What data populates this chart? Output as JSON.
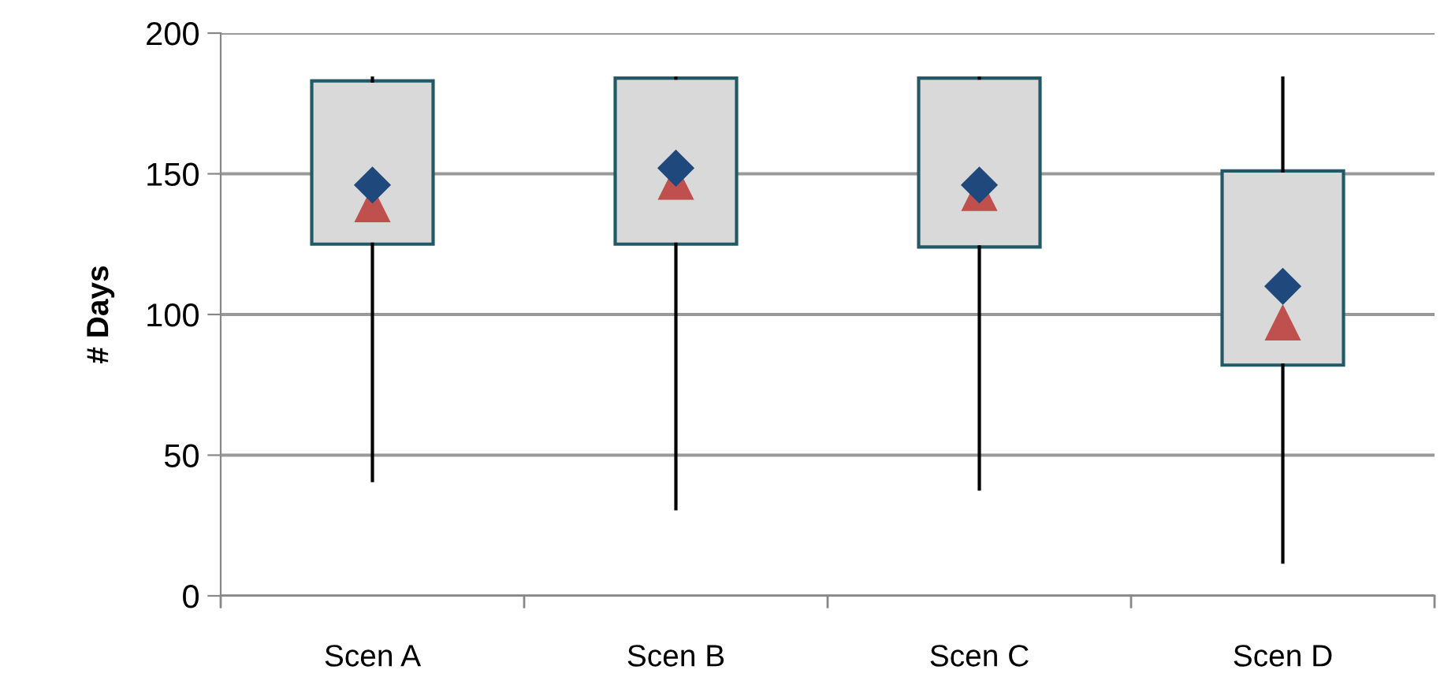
{
  "chart_data": {
    "type": "box",
    "ylabel": "# Days",
    "categories": [
      "Scen A",
      "Scen B",
      "Scen C",
      "Scen D"
    ],
    "series": [
      {
        "color": "#d9d9d9",
        "boxes": [
          {
            "low": 41,
            "q1": 125,
            "median": 139,
            "q3": 183,
            "high": 184,
            "mean": 146
          },
          {
            "low": 31,
            "q1": 125,
            "median": 147,
            "q3": 184,
            "high": 184,
            "mean": 152
          },
          {
            "low": 38,
            "q1": 124,
            "median": 143,
            "q3": 184,
            "high": 184,
            "mean": 146
          },
          {
            "low": 12,
            "q1": 82,
            "median": 97,
            "q3": 151,
            "high": 184,
            "mean": 110
          }
        ]
      }
    ],
    "ylim": [
      0,
      200
    ],
    "yticks": [
      0,
      50,
      100,
      150,
      200
    ],
    "grid": "y",
    "legend": false
  }
}
